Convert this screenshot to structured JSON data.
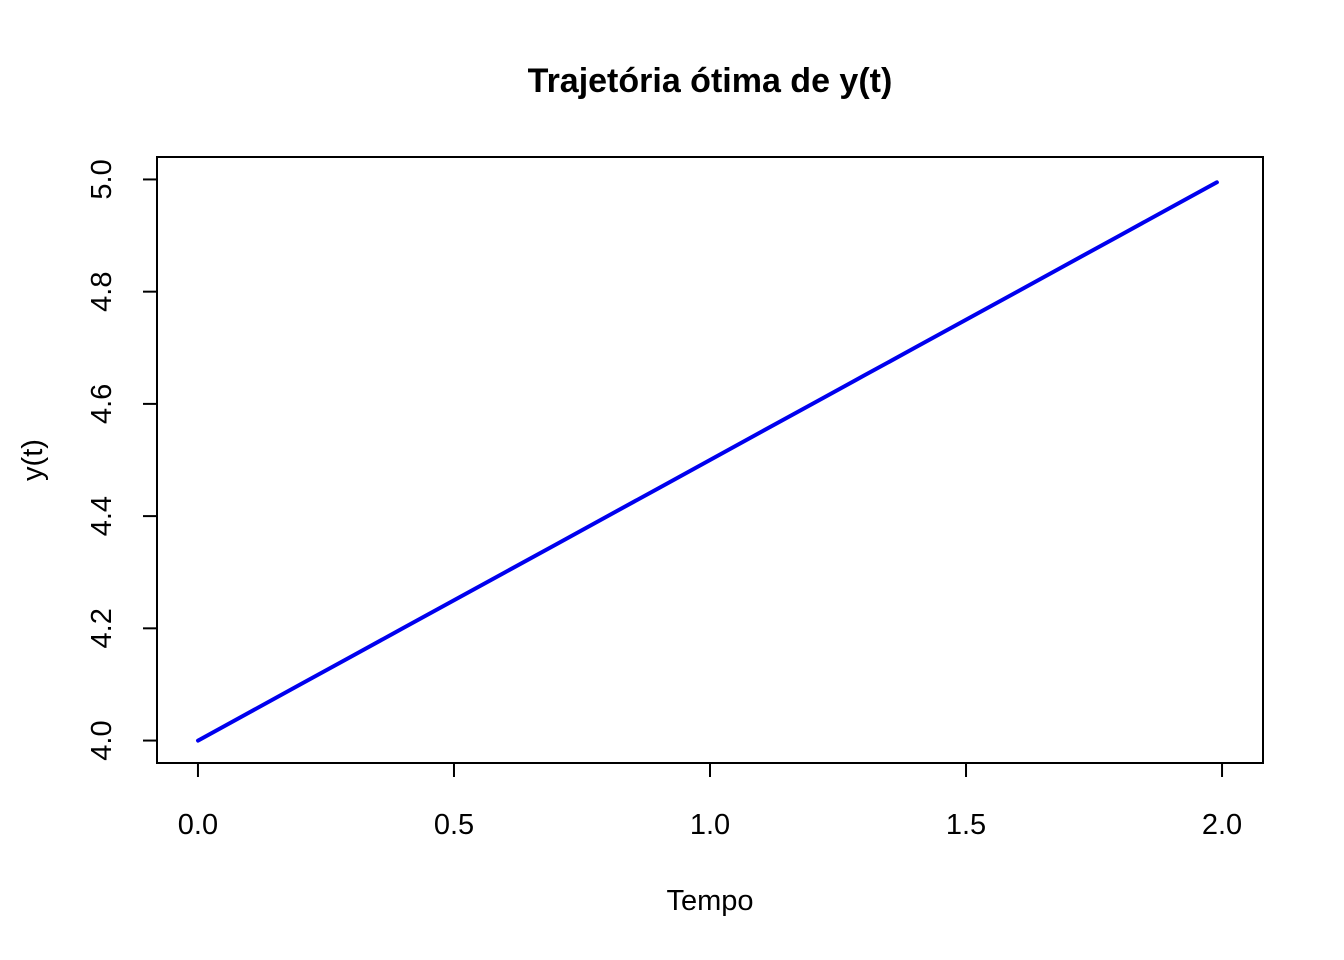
{
  "chart_data": {
    "type": "line",
    "title": "Trajetória ótima de y(t)",
    "xlabel": "Tempo",
    "ylabel": "y(t)",
    "xlim": [
      -0.08,
      2.08
    ],
    "ylim": [
      3.96,
      5.04
    ],
    "xticks": [
      0.0,
      0.5,
      1.0,
      1.5,
      2.0
    ],
    "xtick_labels": [
      "0.0",
      "0.5",
      "1.0",
      "1.5",
      "2.0"
    ],
    "yticks": [
      4.0,
      4.2,
      4.4,
      4.6,
      4.8,
      5.0
    ],
    "ytick_labels": [
      "4.0",
      "4.2",
      "4.4",
      "4.6",
      "4.8",
      "5.0"
    ],
    "grid": false,
    "legend": "none",
    "series": [
      {
        "color": "#0000ee",
        "x": [
          0.0,
          0.1,
          0.2,
          0.3,
          0.4,
          0.5,
          0.6,
          0.7,
          0.8,
          0.9,
          1.0,
          1.1,
          1.2,
          1.3,
          1.4,
          1.5,
          1.6,
          1.7,
          1.8,
          1.9,
          1.99
        ],
        "y": [
          4.0,
          4.05,
          4.1,
          4.15,
          4.2,
          4.25,
          4.3,
          4.35,
          4.4,
          4.45,
          4.5,
          4.55,
          4.6,
          4.65,
          4.7,
          4.75,
          4.8,
          4.85,
          4.9,
          4.95,
          4.995
        ]
      }
    ]
  }
}
